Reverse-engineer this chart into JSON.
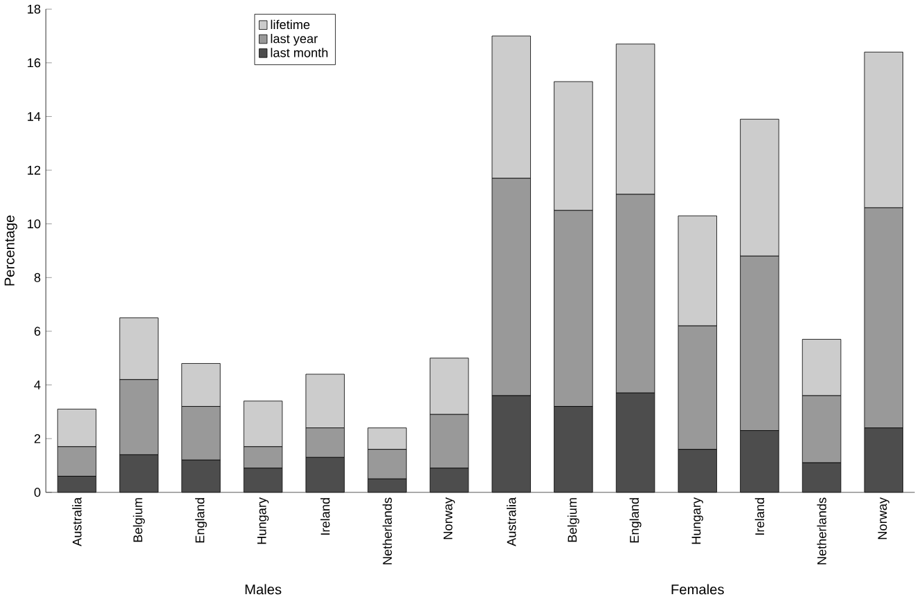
{
  "chart_data": {
    "type": "bar",
    "stacked": true,
    "ylabel": "Percentage",
    "categories": [
      "Australia",
      "Belgium",
      "England",
      "Hungary",
      "Ireland",
      "Netherlands",
      "Norway",
      "Australia",
      "Belgium",
      "England",
      "Hungary",
      "Ireland",
      "Netherlands",
      "Norway"
    ],
    "series": [
      {
        "name": "last month",
        "color": "#4d4d4d",
        "values": [
          0.6,
          1.4,
          1.2,
          0.9,
          1.3,
          0.5,
          0.9,
          3.6,
          3.2,
          3.7,
          1.6,
          2.3,
          1.1,
          2.4
        ]
      },
      {
        "name": "last year",
        "color": "#999999",
        "values": [
          1.1,
          2.8,
          2.0,
          0.8,
          1.1,
          1.1,
          2.0,
          8.1,
          7.3,
          7.4,
          4.6,
          6.5,
          2.5,
          8.2
        ]
      },
      {
        "name": "lifetime",
        "color": "#cccccc",
        "values": [
          1.4,
          2.3,
          1.6,
          1.7,
          2.0,
          0.8,
          2.1,
          5.3,
          4.8,
          5.6,
          4.1,
          5.1,
          2.1,
          5.8
        ]
      }
    ],
    "ylim": [
      0,
      18
    ],
    "yticks": [
      0,
      2,
      4,
      6,
      8,
      10,
      12,
      14,
      16,
      18
    ],
    "legend": "top left",
    "grid": false,
    "annotations": [
      "Males",
      "Females"
    ]
  }
}
